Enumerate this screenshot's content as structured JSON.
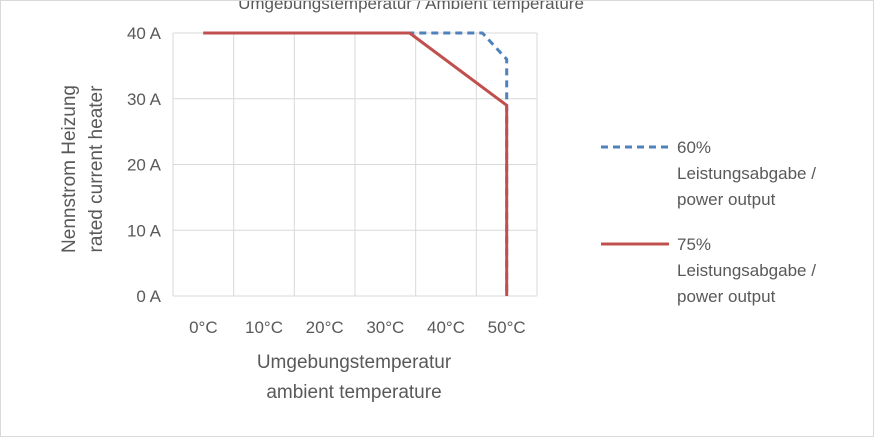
{
  "chart_data": {
    "type": "line",
    "title_fragment": "Umgebungstemperatur / Ambient temperature",
    "xlabel": [
      "Umgebungstemperatur",
      "ambient temperature"
    ],
    "ylabel": [
      "Nennstrom Heizung",
      "rated current heater"
    ],
    "x_ticks": [
      "0°C",
      "10°C",
      "20°C",
      "30°C",
      "40°C",
      "50°C"
    ],
    "y_ticks": [
      "0 A",
      "10 A",
      "20 A",
      "30 A",
      "40 A"
    ],
    "xlim": [
      -5,
      55
    ],
    "ylim": [
      0,
      40
    ],
    "grid": true,
    "legend_position": "right",
    "series": [
      {
        "name": [
          "60%",
          "Leistungsabgabe /",
          "power output"
        ],
        "color": "#4f81bd",
        "dash": "dashed",
        "points": [
          [
            0,
            40
          ],
          [
            35,
            40
          ],
          [
            46,
            40
          ],
          [
            50,
            36
          ],
          [
            50,
            0
          ]
        ]
      },
      {
        "name": [
          "75%",
          "Leistungsabgabe /",
          "power output"
        ],
        "color": "#c0504d",
        "dash": "solid",
        "points": [
          [
            0,
            40
          ],
          [
            34,
            40
          ],
          [
            50,
            29
          ],
          [
            50,
            0
          ]
        ]
      }
    ]
  }
}
